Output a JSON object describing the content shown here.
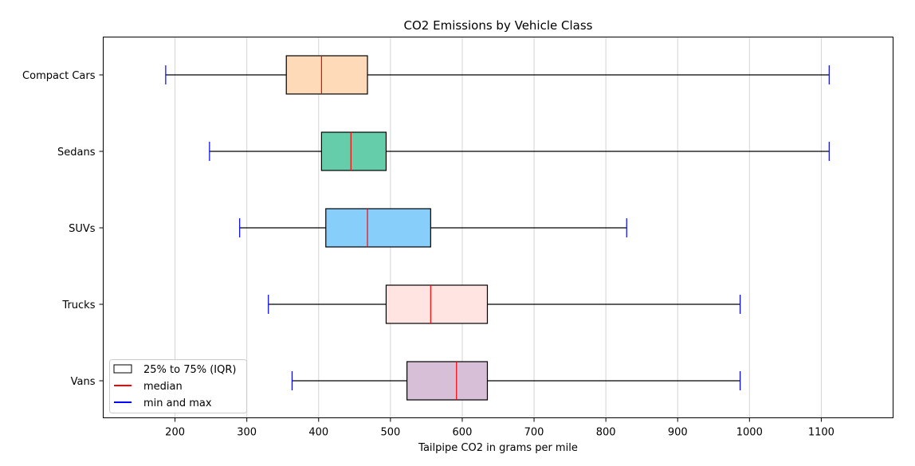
{
  "chart_data": {
    "type": "box",
    "orientation": "horizontal",
    "title": "CO2 Emissions by Vehicle Class",
    "xlabel": "Tailpipe CO2 in grams per mile",
    "ylabel": "",
    "xlim": [
      100,
      1200
    ],
    "xticks": [
      200,
      300,
      400,
      500,
      600,
      700,
      800,
      900,
      1000,
      1100
    ],
    "grid": "vertical",
    "categories": [
      "Compact Cars",
      "Sedans",
      "SUVs",
      "Trucks",
      "Vans"
    ],
    "boxes": [
      {
        "category": "Compact Cars",
        "min": 187,
        "q1": 355,
        "median": 404,
        "q3": 468,
        "max": 1111,
        "color": "#ffdab9"
      },
      {
        "category": "Sedans",
        "min": 248,
        "q1": 404,
        "median": 445,
        "q3": 494,
        "max": 1111,
        "color": "#66cdaa"
      },
      {
        "category": "SUVs",
        "min": 290,
        "q1": 410,
        "median": 468,
        "q3": 556,
        "max": 829,
        "color": "#87cefa"
      },
      {
        "category": "Trucks",
        "min": 330,
        "q1": 494,
        "median": 556,
        "q3": 635,
        "max": 987,
        "color": "#ffe4e1"
      },
      {
        "category": "Vans",
        "min": 363,
        "q1": 523,
        "median": 592,
        "q3": 635,
        "max": 987,
        "color": "#d8bfd8"
      }
    ],
    "legend": {
      "placement": "lower-left",
      "entries": [
        {
          "label": "25% to 75% (IQR)",
          "kind": "box",
          "color": "#000000"
        },
        {
          "label": "median",
          "kind": "line",
          "color": "#ff0000"
        },
        {
          "label": "min and max",
          "kind": "line",
          "color": "#0000ff"
        }
      ]
    },
    "colors": {
      "median": "#ff0000",
      "whisker_cap": "#0000ff",
      "whisker": "#000000",
      "grid": "#d3d3d3"
    }
  }
}
